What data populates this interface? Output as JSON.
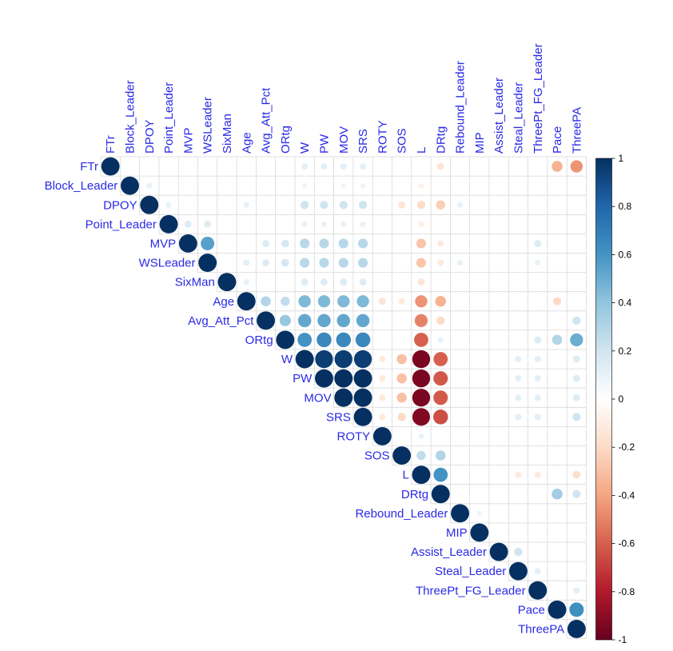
{
  "chart_data": {
    "type": "heatmap",
    "title": "",
    "variables": [
      "FTr",
      "Block_Leader",
      "DPOY",
      "Point_Leader",
      "MVP",
      "WSLeader",
      "SixMan",
      "Age",
      "Avg_Att_Pct",
      "ORtg",
      "W",
      "PW",
      "MOV",
      "SRS",
      "ROTY",
      "SOS",
      "L",
      "DRtg",
      "Rebound_Leader",
      "MIP",
      "Assist_Leader",
      "Steal_Leader",
      "ThreePt_FG_Leader",
      "Pace",
      "ThreePA"
    ],
    "shape": "upper-triangle circles",
    "colorbar": {
      "min": -1,
      "max": 1,
      "ticks": [
        "1",
        "0.8",
        "0.6",
        "0.4",
        "0.2",
        "0",
        "-0.2",
        "-0.4",
        "-0.6",
        "-0.8",
        "-1"
      ]
    },
    "colors": {
      "negative": "#67001f",
      "neutral": "#ffffff",
      "positive": "#053061",
      "label": "#2a2ae6",
      "grid": "#d9d9d9"
    },
    "correlations": [
      [
        "FTr",
        "W",
        0.12
      ],
      [
        "FTr",
        "PW",
        0.12
      ],
      [
        "FTr",
        "MOV",
        0.12
      ],
      [
        "FTr",
        "SRS",
        0.12
      ],
      [
        "FTr",
        "DRtg",
        -0.15
      ],
      [
        "FTr",
        "Pace",
        -0.35
      ],
      [
        "FTr",
        "ThreePA",
        -0.45
      ],
      [
        "Block_Leader",
        "DPOY",
        0.1
      ],
      [
        "Block_Leader",
        "W",
        0.08
      ],
      [
        "Block_Leader",
        "MOV",
        0.08
      ],
      [
        "Block_Leader",
        "SRS",
        0.08
      ],
      [
        "Block_Leader",
        "L",
        -0.08
      ],
      [
        "DPOY",
        "Point_Leader",
        0.1
      ],
      [
        "DPOY",
        "Age",
        0.1
      ],
      [
        "DPOY",
        "W",
        0.2
      ],
      [
        "DPOY",
        "PW",
        0.2
      ],
      [
        "DPOY",
        "MOV",
        0.2
      ],
      [
        "DPOY",
        "SRS",
        0.2
      ],
      [
        "DPOY",
        "SOS",
        -0.15
      ],
      [
        "DPOY",
        "L",
        -0.2
      ],
      [
        "DPOY",
        "DRtg",
        -0.25
      ],
      [
        "DPOY",
        "Rebound_Leader",
        0.1
      ],
      [
        "Point_Leader",
        "MVP",
        0.15
      ],
      [
        "Point_Leader",
        "WSLeader",
        0.15
      ],
      [
        "Point_Leader",
        "W",
        0.1
      ],
      [
        "Point_Leader",
        "PW",
        0.1
      ],
      [
        "Point_Leader",
        "MOV",
        0.1
      ],
      [
        "Point_Leader",
        "SRS",
        0.1
      ],
      [
        "Point_Leader",
        "L",
        -0.1
      ],
      [
        "MVP",
        "WSLeader",
        0.55
      ],
      [
        "MVP",
        "Avg_Att_Pct",
        0.15
      ],
      [
        "MVP",
        "ORtg",
        0.18
      ],
      [
        "MVP",
        "W",
        0.28
      ],
      [
        "MVP",
        "PW",
        0.28
      ],
      [
        "MVP",
        "MOV",
        0.28
      ],
      [
        "MVP",
        "SRS",
        0.28
      ],
      [
        "MVP",
        "L",
        -0.28
      ],
      [
        "MVP",
        "DRtg",
        -0.12
      ],
      [
        "MVP",
        "ThreePt_FG_Leader",
        0.15
      ],
      [
        "WSLeader",
        "Age",
        0.12
      ],
      [
        "WSLeader",
        "Avg_Att_Pct",
        0.15
      ],
      [
        "WSLeader",
        "ORtg",
        0.18
      ],
      [
        "WSLeader",
        "W",
        0.28
      ],
      [
        "WSLeader",
        "PW",
        0.28
      ],
      [
        "WSLeader",
        "MOV",
        0.28
      ],
      [
        "WSLeader",
        "SRS",
        0.28
      ],
      [
        "WSLeader",
        "L",
        -0.28
      ],
      [
        "WSLeader",
        "DRtg",
        -0.12
      ],
      [
        "WSLeader",
        "Rebound_Leader",
        0.1
      ],
      [
        "WSLeader",
        "ThreePt_FG_Leader",
        0.1
      ],
      [
        "SixMan",
        "Age",
        0.1
      ],
      [
        "SixMan",
        "W",
        0.15
      ],
      [
        "SixMan",
        "PW",
        0.15
      ],
      [
        "SixMan",
        "MOV",
        0.15
      ],
      [
        "SixMan",
        "SRS",
        0.15
      ],
      [
        "SixMan",
        "L",
        -0.15
      ],
      [
        "Age",
        "Avg_Att_Pct",
        0.3
      ],
      [
        "Age",
        "ORtg",
        0.25
      ],
      [
        "Age",
        "W",
        0.45
      ],
      [
        "Age",
        "PW",
        0.45
      ],
      [
        "Age",
        "MOV",
        0.45
      ],
      [
        "Age",
        "SRS",
        0.45
      ],
      [
        "Age",
        "ROTY",
        -0.15
      ],
      [
        "Age",
        "SOS",
        -0.12
      ],
      [
        "Age",
        "L",
        -0.45
      ],
      [
        "Age",
        "DRtg",
        -0.35
      ],
      [
        "Age",
        "Pace",
        -0.2
      ],
      [
        "Avg_Att_Pct",
        "ORtg",
        0.38
      ],
      [
        "Avg_Att_Pct",
        "W",
        0.52
      ],
      [
        "Avg_Att_Pct",
        "PW",
        0.52
      ],
      [
        "Avg_Att_Pct",
        "MOV",
        0.52
      ],
      [
        "Avg_Att_Pct",
        "SRS",
        0.52
      ],
      [
        "Avg_Att_Pct",
        "L",
        -0.5
      ],
      [
        "Avg_Att_Pct",
        "DRtg",
        -0.2
      ],
      [
        "Avg_Att_Pct",
        "ThreePA",
        0.2
      ],
      [
        "ORtg",
        "W",
        0.6
      ],
      [
        "ORtg",
        "PW",
        0.65
      ],
      [
        "ORtg",
        "MOV",
        0.65
      ],
      [
        "ORtg",
        "SRS",
        0.65
      ],
      [
        "ORtg",
        "L",
        -0.6
      ],
      [
        "ORtg",
        "DRtg",
        0.1
      ],
      [
        "ORtg",
        "ThreePt_FG_Leader",
        0.15
      ],
      [
        "ORtg",
        "Pace",
        0.3
      ],
      [
        "ORtg",
        "ThreePA",
        0.5
      ],
      [
        "W",
        "PW",
        0.95
      ],
      [
        "W",
        "MOV",
        0.95
      ],
      [
        "W",
        "SRS",
        0.95
      ],
      [
        "W",
        "ROTY",
        -0.12
      ],
      [
        "W",
        "SOS",
        -0.3
      ],
      [
        "W",
        "L",
        -0.95
      ],
      [
        "W",
        "DRtg",
        -0.6
      ],
      [
        "W",
        "Steal_Leader",
        0.12
      ],
      [
        "W",
        "ThreePt_FG_Leader",
        0.12
      ],
      [
        "W",
        "ThreePA",
        0.15
      ],
      [
        "PW",
        "MOV",
        1.0
      ],
      [
        "PW",
        "SRS",
        1.0
      ],
      [
        "PW",
        "ROTY",
        -0.12
      ],
      [
        "PW",
        "SOS",
        -0.3
      ],
      [
        "PW",
        "L",
        -0.95
      ],
      [
        "PW",
        "DRtg",
        -0.62
      ],
      [
        "PW",
        "Steal_Leader",
        0.12
      ],
      [
        "PW",
        "ThreePt_FG_Leader",
        0.12
      ],
      [
        "PW",
        "ThreePA",
        0.15
      ],
      [
        "MOV",
        "SRS",
        1.0
      ],
      [
        "MOV",
        "ROTY",
        -0.12
      ],
      [
        "MOV",
        "SOS",
        -0.3
      ],
      [
        "MOV",
        "L",
        -0.95
      ],
      [
        "MOV",
        "DRtg",
        -0.62
      ],
      [
        "MOV",
        "Steal_Leader",
        0.12
      ],
      [
        "MOV",
        "ThreePt_FG_Leader",
        0.12
      ],
      [
        "MOV",
        "ThreePA",
        0.15
      ],
      [
        "SRS",
        "ROTY",
        -0.12
      ],
      [
        "SRS",
        "SOS",
        -0.2
      ],
      [
        "SRS",
        "L",
        -0.93
      ],
      [
        "SRS",
        "DRtg",
        -0.65
      ],
      [
        "SRS",
        "Steal_Leader",
        0.12
      ],
      [
        "SRS",
        "ThreePt_FG_Leader",
        0.12
      ],
      [
        "SRS",
        "ThreePA",
        0.2
      ],
      [
        "ROTY",
        "L",
        0.1
      ],
      [
        "SOS",
        "L",
        0.25
      ],
      [
        "SOS",
        "DRtg",
        0.3
      ],
      [
        "L",
        "DRtg",
        0.6
      ],
      [
        "L",
        "Steal_Leader",
        -0.12
      ],
      [
        "L",
        "ThreePt_FG_Leader",
        -0.12
      ],
      [
        "L",
        "ThreePA",
        -0.18
      ],
      [
        "DRtg",
        "Pace",
        0.35
      ],
      [
        "DRtg",
        "ThreePA",
        0.2
      ],
      [
        "Rebound_Leader",
        "MIP",
        0.08
      ],
      [
        "Assist_Leader",
        "Steal_Leader",
        0.2
      ],
      [
        "Steal_Leader",
        "ThreePt_FG_Leader",
        0.12
      ],
      [
        "ThreePt_FG_Leader",
        "ThreePA",
        0.12
      ],
      [
        "Pace",
        "ThreePA",
        0.62
      ]
    ]
  }
}
